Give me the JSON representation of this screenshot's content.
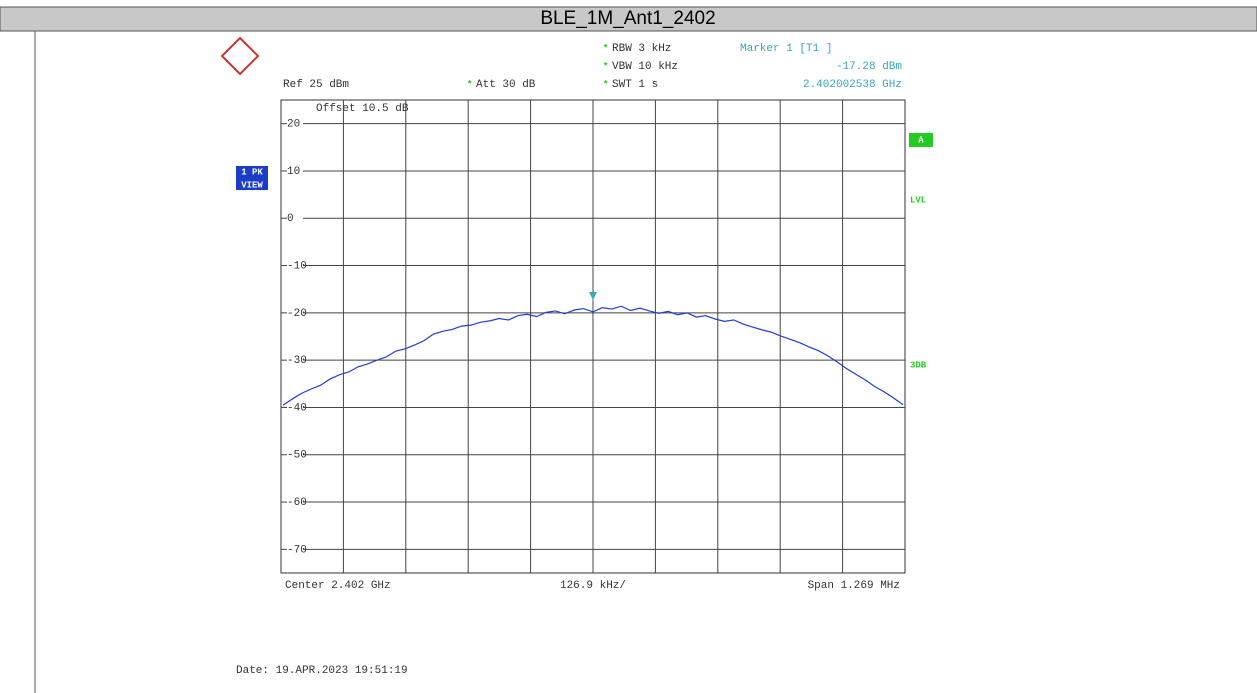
{
  "chart_data": {
    "type": "line",
    "title": "BLE_1M_Ant1_2402",
    "settings": {
      "rbw": "RBW 3 kHz",
      "vbw": "VBW 10 kHz",
      "swt": "SWT 1 s",
      "ref": "Ref 25 dBm",
      "att": "Att 30 dB",
      "offset": "Offset 10.5 dB",
      "flag": "*"
    },
    "marker": {
      "label": "Marker 1 [T1 ]",
      "value": -17.28,
      "value_label": "-17.28 dBm",
      "freq_label": "2.402002538 GHz"
    },
    "side_labels": {
      "trace": "1 PK",
      "mode": "VIEW",
      "a": "A",
      "lvl": "LVL",
      "db3": "3DB"
    },
    "footer": {
      "center": "Center 2.402 GHz",
      "div": "126.9 kHz/",
      "span": "Span 1.269 MHz",
      "date": "Date: 19.APR.2023 19:51:19"
    },
    "ylim": [
      -75,
      25
    ],
    "yticks": [
      20,
      10,
      0,
      -10,
      -20,
      -30,
      -40,
      -50,
      -60,
      -70
    ],
    "grid": true,
    "series": [
      {
        "name": "1 PK",
        "color": "#1f3fcf",
        "values": [
          -39.5,
          -38.2,
          -37.0,
          -36.1,
          -35.3,
          -34.0,
          -33.1,
          -32.5,
          -31.4,
          -30.8,
          -30.0,
          -29.3,
          -28.1,
          -27.6,
          -26.8,
          -25.9,
          -24.5,
          -23.9,
          -23.5,
          -22.8,
          -22.6,
          -22.0,
          -21.7,
          -21.2,
          -21.5,
          -20.6,
          -20.3,
          -20.8,
          -19.9,
          -19.6,
          -20.2,
          -19.4,
          -19.1,
          -19.8,
          -18.9,
          -19.2,
          -18.6,
          -19.5,
          -19.0,
          -19.6,
          -20.1,
          -19.7,
          -20.4,
          -20.0,
          -20.9,
          -20.6,
          -21.3,
          -21.8,
          -21.5,
          -22.4,
          -23.0,
          -23.6,
          -24.1,
          -24.9,
          -25.6,
          -26.3,
          -27.2,
          -28.0,
          -29.1,
          -30.4,
          -31.8,
          -33.0,
          -34.2,
          -35.6,
          -36.7,
          -38.0,
          -39.4
        ]
      }
    ]
  }
}
